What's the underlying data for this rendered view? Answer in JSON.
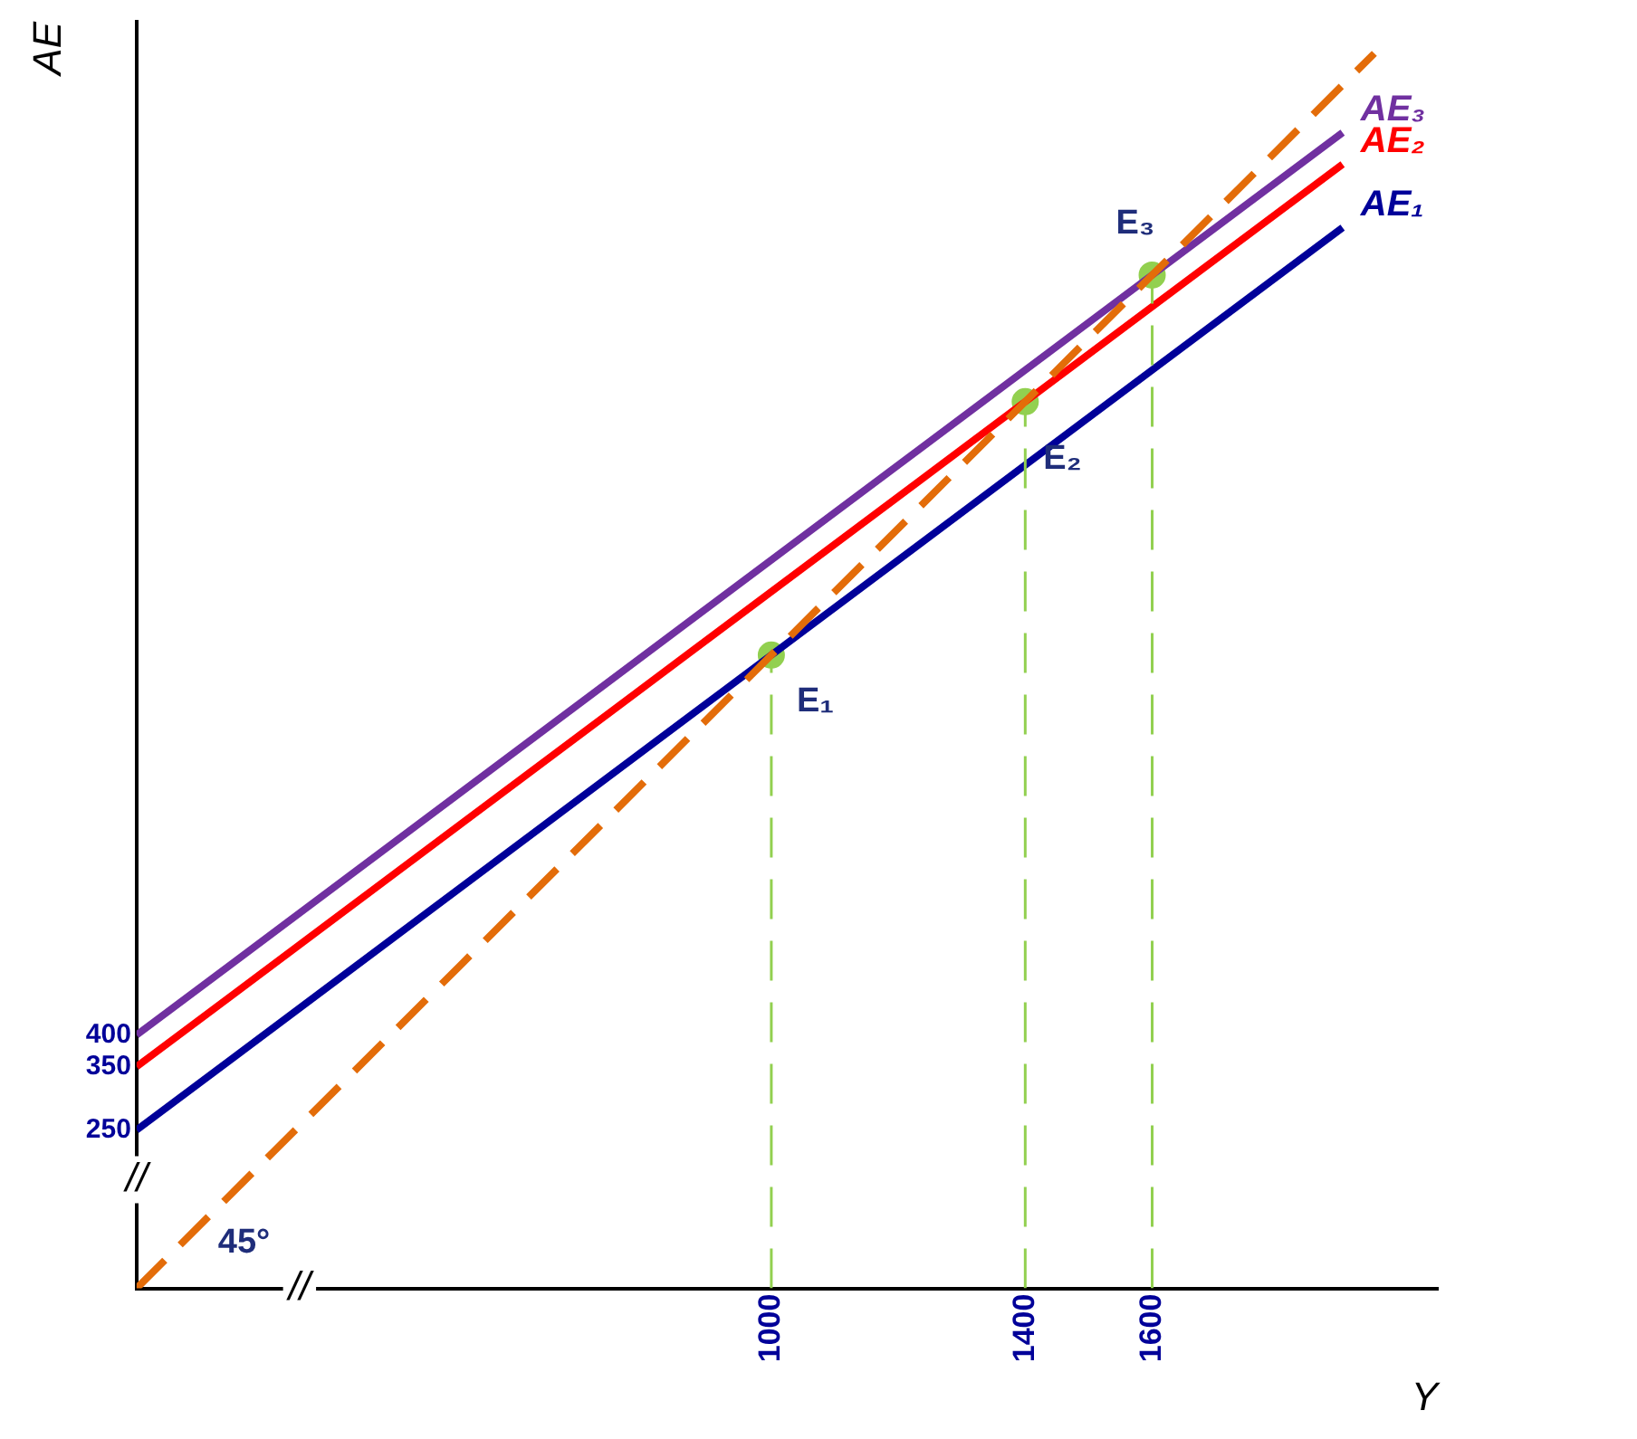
{
  "chart_data": {
    "type": "line",
    "xlabel": "Y",
    "ylabel": "AE",
    "xlim": [
      0,
      2050
    ],
    "ylim": [
      0,
      2000
    ],
    "xticks": [
      1000,
      1400,
      1600
    ],
    "yticks": [
      250,
      350,
      400
    ],
    "grid": false,
    "legend": false,
    "marker": "none",
    "series": [
      {
        "type": "line",
        "x": [
          0,
          1950
        ],
        "values": [
          0,
          1950
        ],
        "color": "#e36c09",
        "line_style": "dashed"
      },
      {
        "type": "line",
        "x": [
          1000,
          1000
        ],
        "values": [
          0,
          1000
        ],
        "color": "#92d050",
        "line_style": "dashed"
      },
      {
        "type": "line",
        "x": [
          1400,
          1400
        ],
        "values": [
          0,
          1400
        ],
        "color": "#92d050",
        "line_style": "dashed"
      },
      {
        "type": "line",
        "x": [
          1600,
          1600
        ],
        "values": [
          0,
          1600
        ],
        "color": "#92d050",
        "line_style": "dashed"
      },
      {
        "type": "line",
        "name": "AE₁",
        "x": [
          0,
          1900
        ],
        "values": [
          250,
          1675
        ],
        "color": "#000099",
        "line_style": "solid"
      },
      {
        "type": "line",
        "name": "AE₂",
        "x": [
          0,
          1900
        ],
        "values": [
          350,
          1775
        ],
        "color": "#ff0000",
        "line_style": "solid"
      },
      {
        "type": "line",
        "name": "AE₃",
        "x": [
          0,
          1900
        ],
        "values": [
          400,
          1825
        ],
        "color": "#7030a0",
        "line_style": "solid"
      },
      {
        "type": "scatter",
        "x": [
          1000,
          1400,
          1600
        ],
        "values": [
          1000,
          1400,
          1600
        ],
        "color": "#92d050",
        "marker": "circle"
      }
    ],
    "annotations": [
      {
        "text": "E₁",
        "x": 1000,
        "y": 1000
      },
      {
        "text": "E₂",
        "x": 1400,
        "y": 1400
      },
      {
        "text": "E₃",
        "x": 1600,
        "y": 1600
      },
      "45°",
      "//",
      "//"
    ]
  }
}
